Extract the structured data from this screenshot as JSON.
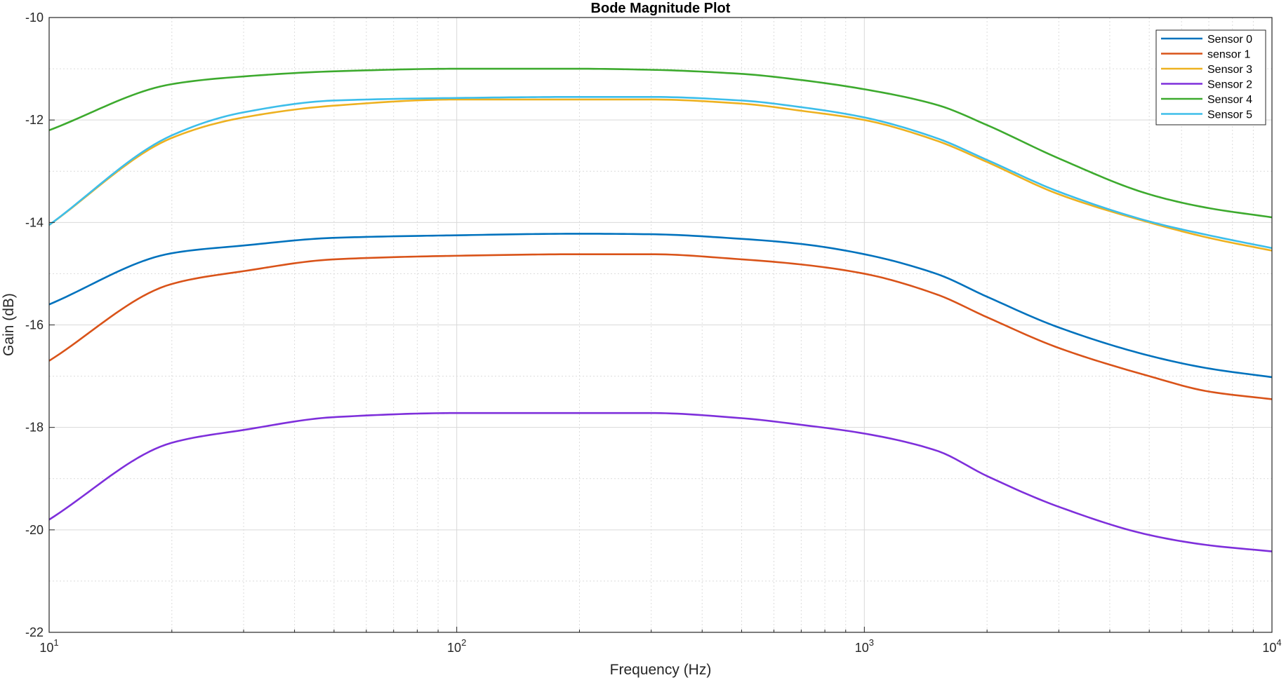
{
  "chart_data": {
    "type": "line",
    "title": "Bode Magnitude Plot",
    "xlabel": "Frequency (Hz)",
    "ylabel": "Gain (dB)",
    "xscale": "log",
    "xlim": [
      10,
      10000
    ],
    "ylim": [
      -22,
      -10
    ],
    "grid": true,
    "minor_grid": true,
    "legend_position": "top-right",
    "x_tick_labels": [
      {
        "value": 10,
        "base": "10",
        "exp": "1"
      },
      {
        "value": 100,
        "base": "10",
        "exp": "2"
      },
      {
        "value": 1000,
        "base": "10",
        "exp": "3"
      },
      {
        "value": 10000,
        "base": "10",
        "exp": "4"
      }
    ],
    "y_ticks": [
      -22,
      -20,
      -18,
      -16,
      -14,
      -12,
      -10
    ],
    "x": [
      10,
      20,
      30,
      50,
      100,
      200,
      300,
      500,
      700,
      1000,
      1500,
      2000,
      3000,
      5000,
      7000,
      10000
    ],
    "series": [
      {
        "name": "Sensor 0",
        "color": "#0072BD",
        "values": [
          -15.6,
          -14.6,
          -14.45,
          -14.3,
          -14.25,
          -14.22,
          -14.23,
          -14.32,
          -14.42,
          -14.62,
          -15.0,
          -15.45,
          -16.05,
          -16.6,
          -16.85,
          -17.02
        ]
      },
      {
        "name": "sensor 1",
        "color": "#D95319",
        "values": [
          -16.7,
          -15.2,
          -14.95,
          -14.72,
          -14.65,
          -14.62,
          -14.62,
          -14.72,
          -14.82,
          -15.0,
          -15.4,
          -15.85,
          -16.45,
          -17.0,
          -17.3,
          -17.45
        ]
      },
      {
        "name": "Sensor 3",
        "color": "#EDB120",
        "values": [
          -14.05,
          -12.35,
          -11.95,
          -11.72,
          -11.6,
          -11.6,
          -11.6,
          -11.68,
          -11.82,
          -12.0,
          -12.4,
          -12.82,
          -13.45,
          -14.0,
          -14.3,
          -14.55
        ]
      },
      {
        "name": "Sensor 2",
        "color": "#7E2FDB",
        "values": [
          -19.8,
          -18.3,
          -18.05,
          -17.8,
          -17.72,
          -17.72,
          -17.72,
          -17.82,
          -17.95,
          -18.12,
          -18.45,
          -18.95,
          -19.55,
          -20.1,
          -20.3,
          -20.42
        ]
      },
      {
        "name": "Sensor 4",
        "color": "#3DAA2E",
        "values": [
          -12.2,
          -11.3,
          -11.15,
          -11.05,
          -11.0,
          -11.0,
          -11.02,
          -11.1,
          -11.22,
          -11.4,
          -11.7,
          -12.1,
          -12.75,
          -13.45,
          -13.72,
          -13.9
        ]
      },
      {
        "name": "Sensor 5",
        "color": "#3DBEEA",
        "values": [
          -14.05,
          -12.3,
          -11.85,
          -11.62,
          -11.57,
          -11.55,
          -11.55,
          -11.62,
          -11.75,
          -11.95,
          -12.35,
          -12.78,
          -13.4,
          -13.98,
          -14.25,
          -14.5
        ]
      }
    ]
  }
}
